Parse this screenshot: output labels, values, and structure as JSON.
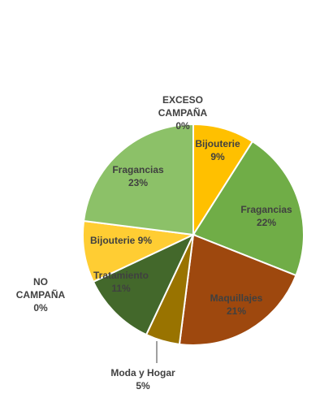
{
  "chart_data": {
    "type": "pie",
    "title": "",
    "slices": [
      {
        "label": "Bijouterie",
        "pct_text": "9%",
        "value": 9,
        "color": "#FFC000"
      },
      {
        "label": "Fragancias",
        "pct_text": "22%",
        "value": 22,
        "color": "#70AD47"
      },
      {
        "label": "Maquillajes",
        "pct_text": "21%",
        "value": 21,
        "color": "#9E480E"
      },
      {
        "label": "Moda y Hogar",
        "pct_text": "5%",
        "value": 5,
        "color": "#997300"
      },
      {
        "label": "Tratamiento",
        "pct_text": "11%",
        "value": 11,
        "color": "#43682B"
      },
      {
        "label": "Bijouterie",
        "pct_text": "9%",
        "value": 9,
        "color": "#FFCD33"
      },
      {
        "label": "Fragancias",
        "pct_text": "23%",
        "value": 23,
        "color": "#8CC168"
      }
    ],
    "group_labels": [
      {
        "line1": "EXCESO",
        "line2": "CAMPAÑA",
        "pct_text": "0%",
        "value": 0
      },
      {
        "line1": "NO",
        "line2": "CAMPAÑA",
        "pct_text": "0%",
        "value": 0
      }
    ]
  }
}
